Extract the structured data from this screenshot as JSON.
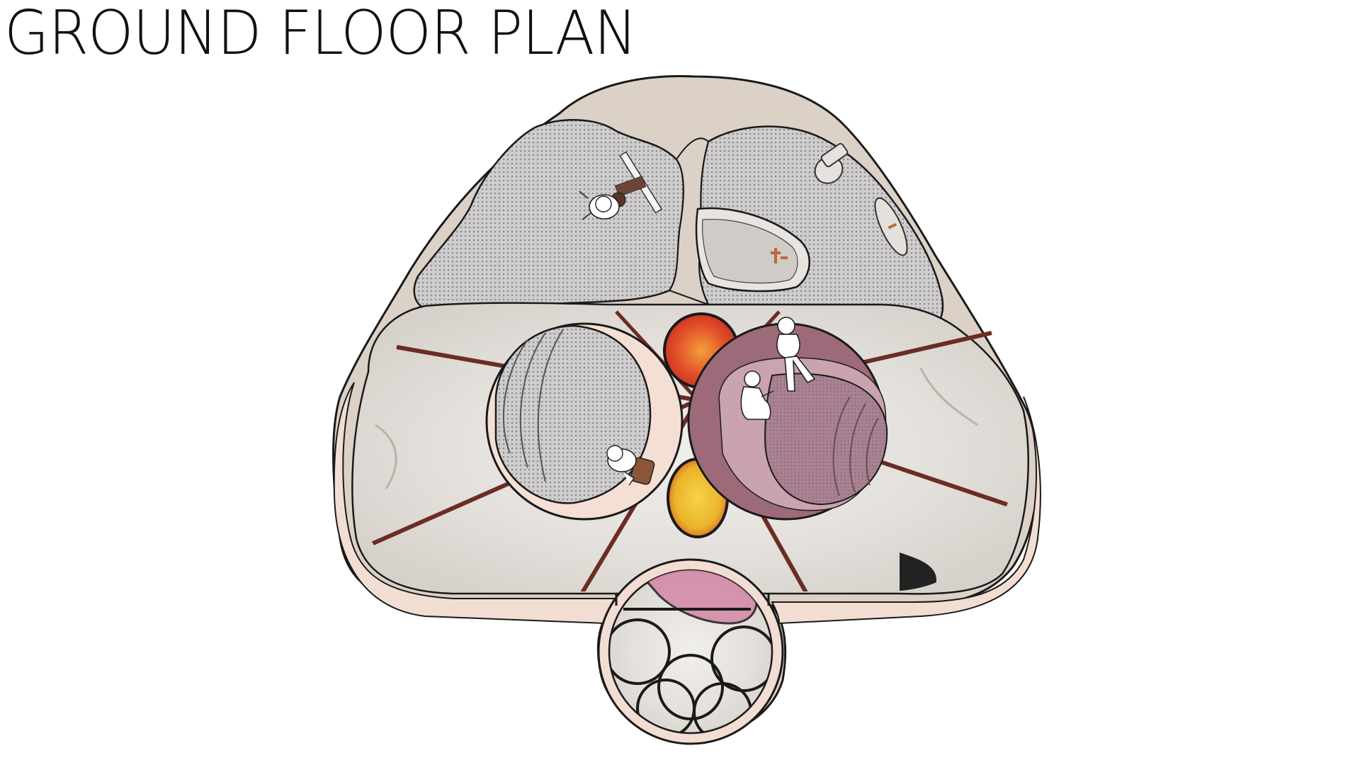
{
  "title": "GROUND FLOOR PLAN",
  "colors": {
    "wall_fill": "#dcd1c7",
    "wall_stroke": "#1a1a1a",
    "tile_floor": "#e8e4df",
    "tile_grout": "#6b2c25",
    "peach_platform": "#f5dfd4",
    "mauve_platform": "#9c6a78",
    "mauve_inner": "#c9a3ae",
    "mauve_carpet": "#a98393",
    "carpet_grey": "#c9c7c7",
    "orange_glass": "#e8582a",
    "yellow_glass": "#f0c22a",
    "pink_glass": "#d386a6",
    "figure_white": "#ffffff",
    "furniture_brown": "#7a4b35"
  },
  "icons": [
    "person-with-chair-icon",
    "toilet-icon",
    "bathtub-icon",
    "sink-icon",
    "standing-person-icon",
    "seated-person-icon",
    "person-with-armchair-icon"
  ]
}
